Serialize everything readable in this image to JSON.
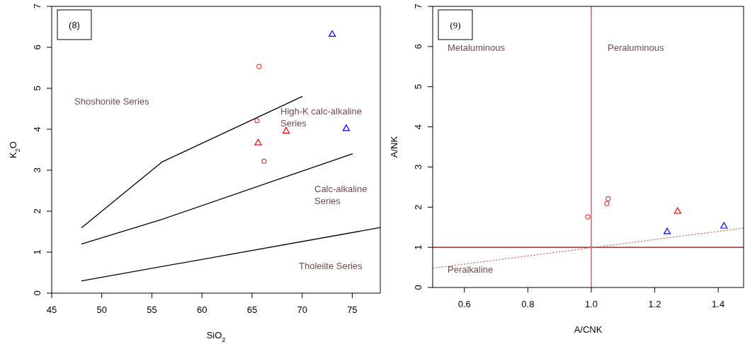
{
  "chart_data": [
    {
      "type": "scatter",
      "title": "(8)",
      "xlabel": "SiO$_{2}$",
      "ylabel": "K$_{2}$O",
      "xlim": [
        45,
        77.8
      ],
      "ylim": [
        0,
        7
      ],
      "xticks": [
        45,
        50,
        55,
        60,
        65,
        70,
        75
      ],
      "yticks": [
        0,
        1,
        2,
        3,
        4,
        5,
        6,
        7
      ],
      "grid": false,
      "series": [
        {
          "type": "line",
          "color": "#000000",
          "marker": "none",
          "line_style": "solid",
          "x": [
            48,
            56,
            70
          ],
          "values": [
            1.6,
            3.2,
            4.8
          ]
        },
        {
          "type": "line",
          "color": "#000000",
          "marker": "none",
          "line_style": "solid",
          "x": [
            48,
            56,
            75
          ],
          "values": [
            1.2,
            1.8,
            3.4
          ]
        },
        {
          "type": "line",
          "color": "#000000",
          "marker": "none",
          "line_style": "solid",
          "x": [
            48,
            77.8
          ],
          "values": [
            0.3,
            1.6
          ]
        },
        {
          "color": "#ff0000",
          "marker": "circle",
          "x": [
            65.7,
            65.5,
            66.2
          ],
          "values": [
            5.53,
            4.21,
            3.22
          ]
        },
        {
          "color": "#ff0000",
          "marker": "triangle",
          "x": [
            65.6,
            68.4
          ],
          "values": [
            3.67,
            3.96
          ]
        },
        {
          "color": "#0000ff",
          "marker": "triangle",
          "x": [
            73.0,
            74.4
          ],
          "values": [
            6.32,
            4.02
          ]
        }
      ],
      "annotations": [
        "Shoshonite Series",
        "High-K calc-alkaline\nSeries",
        "Calc-alkaline\nSeries",
        "Tholeiite Series"
      ]
    },
    {
      "type": "scatter",
      "title": "(9)",
      "xlabel": "A/CNK",
      "ylabel": "A/NK",
      "xlim": [
        0.5,
        1.48
      ],
      "ylim": [
        0,
        7
      ],
      "xticks": [
        0.6,
        0.8,
        {
          "value": 1,
          "label": "1.0"
        },
        1.2,
        1.4
      ],
      "yticks": [
        0,
        1,
        2,
        3,
        4,
        5,
        6,
        7
      ],
      "grid": false,
      "ref_lines": [
        {
          "axis": "x",
          "value": 1,
          "color": "#c04040"
        },
        {
          "axis": "y",
          "value": 1,
          "color": "#8b0000"
        }
      ],
      "series": [
        {
          "type": "line",
          "color": "#d08080",
          "marker": "none",
          "line_style": "dotted",
          "x": [
            0.5,
            1.48
          ],
          "values": [
            0.48,
            1.48
          ]
        },
        {
          "color": "#ff0000",
          "marker": "circle",
          "x": [
            0.989,
            1.049,
            1.053
          ],
          "values": [
            1.76,
            2.09,
            2.21
          ]
        },
        {
          "color": "#ff0000",
          "marker": "triangle",
          "x": [
            1.272
          ],
          "values": [
            1.9
          ]
        },
        {
          "color": "#0000ff",
          "marker": "triangle",
          "x": [
            1.239,
            1.418
          ],
          "values": [
            1.39,
            1.53
          ]
        }
      ],
      "annotations": [
        "Metaluminous",
        "Peraluminous",
        "Peralkaline"
      ]
    }
  ]
}
